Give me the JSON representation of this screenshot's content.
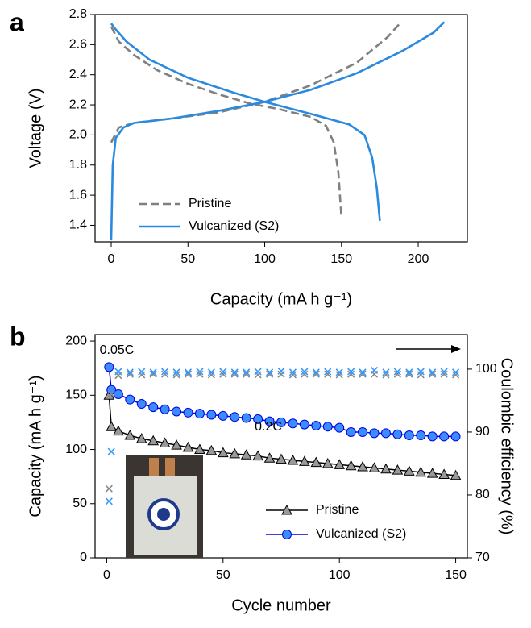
{
  "chart_data": [
    {
      "type": "line",
      "panel_label": "a",
      "xlabel": "Capacity (mA h g⁻¹)",
      "ylabel": "Voltage (V)",
      "xlim": [
        -10.5,
        232
      ],
      "ylim": [
        1.29,
        2.8
      ],
      "xticks": [
        0,
        50,
        100,
        150,
        200
      ],
      "yticks": [
        1.4,
        1.6,
        1.8,
        2.0,
        2.2,
        2.4,
        2.6,
        2.8
      ],
      "series": [
        {
          "name": "Pristine",
          "color": "#808080",
          "dashed": true,
          "curves": [
            {
              "x": [
                0,
                5,
                15,
                30,
                50,
                70,
                90,
                110,
                130,
                140,
                145,
                148,
                150
              ],
              "values": [
                2.72,
                2.62,
                2.53,
                2.43,
                2.34,
                2.27,
                2.21,
                2.17,
                2.12,
                2.06,
                1.95,
                1.75,
                1.45
              ]
            },
            {
              "x": [
                0,
                5,
                15,
                40,
                70,
                100,
                130,
                160,
                180,
                188
              ],
              "values": [
                1.95,
                2.05,
                2.08,
                2.11,
                2.15,
                2.22,
                2.33,
                2.48,
                2.65,
                2.74
              ]
            }
          ]
        },
        {
          "name": "Vulcanized (S2)",
          "color": "#2a8ae0",
          "dashed": false,
          "curves": [
            {
              "x": [
                0,
                3,
                10,
                25,
                50,
                80,
                100,
                130,
                155,
                165,
                170,
                173,
                175
              ],
              "values": [
                2.74,
                2.7,
                2.62,
                2.5,
                2.38,
                2.28,
                2.22,
                2.14,
                2.07,
                2.0,
                1.85,
                1.65,
                1.43
              ]
            },
            {
              "x": [
                0,
                1,
                3,
                8,
                15,
                40,
                70,
                100,
                130,
                160,
                190,
                210,
                217
              ],
              "values": [
                1.3,
                1.8,
                1.98,
                2.05,
                2.08,
                2.11,
                2.16,
                2.22,
                2.3,
                2.41,
                2.56,
                2.68,
                2.75
              ]
            }
          ]
        }
      ]
    },
    {
      "type": "line",
      "panel_label": "b",
      "xlabel": "Cycle number",
      "ylabel": "Capacity (mA h g⁻¹)",
      "y2label": "Coulombic efficiency (%)",
      "xlim": [
        -5,
        155
      ],
      "ylim": [
        0,
        206
      ],
      "y2lim": [
        70,
        105.5
      ],
      "xticks": [
        0,
        50,
        100,
        150
      ],
      "yticks": [
        0,
        50,
        100,
        150,
        200
      ],
      "y2ticks": [
        70,
        80,
        90,
        100
      ],
      "annotations": [
        "0.05C",
        "0.2C"
      ],
      "x": [
        1,
        2,
        5,
        10,
        15,
        20,
        25,
        30,
        35,
        40,
        45,
        50,
        55,
        60,
        65,
        70,
        75,
        80,
        85,
        90,
        95,
        100,
        105,
        110,
        115,
        120,
        125,
        130,
        135,
        140,
        145,
        150
      ],
      "series": [
        {
          "name": "Pristine",
          "color": "#999999",
          "line_color": "#000000",
          "marker": "triangle",
          "values": [
            150,
            121,
            117,
            113,
            110,
            108,
            106,
            104,
            102,
            100,
            99,
            97,
            96,
            95,
            94,
            92,
            91,
            90,
            89,
            88,
            87,
            86,
            85,
            84,
            83,
            82,
            81,
            80,
            79,
            78,
            77,
            76
          ]
        },
        {
          "name": "Vulcanized (S2)",
          "color": "#3a8cff",
          "line_color": "#0000dd",
          "marker": "circle",
          "values": [
            176,
            155,
            151,
            146,
            142,
            139,
            137,
            135,
            134,
            133,
            132,
            131,
            130,
            129,
            128,
            126,
            125,
            124,
            123,
            122,
            121,
            120,
            116,
            116,
            115,
            115,
            114,
            113,
            113,
            112,
            112,
            112
          ]
        },
        {
          "color": "#888888",
          "marker": "x",
          "axis": "y2",
          "values": [
            81.0,
            96.0,
            99.0,
            99.2,
            99.1,
            99.2,
            99.2,
            99.1,
            99.2,
            99.2,
            99.1,
            99.2,
            99.2,
            99.2,
            99.1,
            99.2,
            99.2,
            99.1,
            99.2,
            99.2,
            99.2,
            99.1,
            99.2,
            99.2,
            99.2,
            99.1,
            99.2,
            99.2,
            99.1,
            99.2,
            99.2,
            99.1
          ]
        },
        {
          "color": "#3399ff",
          "marker": "x",
          "axis": "y2",
          "values": [
            79.0,
            86.9,
            99.6,
            99.5,
            99.6,
            99.5,
            99.6,
            99.5,
            99.5,
            99.6,
            99.5,
            99.6,
            99.5,
            99.5,
            99.6,
            99.5,
            99.7,
            99.5,
            99.6,
            99.5,
            99.6,
            99.5,
            99.6,
            99.5,
            99.8,
            99.5,
            99.6,
            99.5,
            99.6,
            99.5,
            99.6,
            99.5
          ]
        }
      ]
    }
  ]
}
